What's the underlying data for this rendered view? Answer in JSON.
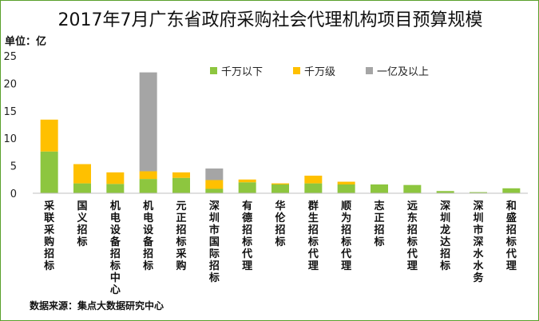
{
  "title": "2017年7月广东省政府采购社会代理机构项目预算规模",
  "unit_label": "单位：亿",
  "source_label": "数据来源：集点大数据研究中心",
  "colors": {
    "series_0": "#8dc63f",
    "series_1": "#ffc000",
    "series_2": "#a5a5a5",
    "axis": "#bfbfbf"
  },
  "chart_data": {
    "type": "bar",
    "stacked": true,
    "title": "2017年7月广东省政府采购社会代理机构项目预算规模",
    "ylabel": "单位：亿",
    "ylim": [
      0,
      25
    ],
    "yticks": [
      0,
      5,
      10,
      15,
      20,
      25
    ],
    "legend_position": "top",
    "categories": [
      "采联采购招标",
      "国义招标",
      "机电设备招标中心",
      "机电设备招标",
      "元正招标采购",
      "深圳市国际招标",
      "有德招标代理",
      "华伦招标",
      "群生招标代理",
      "顺为招标代理",
      "志正招标",
      "远东招标代理",
      "深圳龙达招标",
      "深圳市深水水务",
      "和盛招标代理"
    ],
    "series": [
      {
        "name": "千万以下",
        "values": [
          7.6,
          1.8,
          1.7,
          2.6,
          2.8,
          0.8,
          2.0,
          1.6,
          1.8,
          1.6,
          1.6,
          1.5,
          0.4,
          0.2,
          0.9
        ]
      },
      {
        "name": "千万级",
        "values": [
          5.8,
          3.5,
          2.1,
          1.4,
          1.0,
          1.6,
          0.5,
          0.2,
          1.4,
          0.5,
          0.0,
          0.0,
          0.0,
          0.0,
          0.0
        ]
      },
      {
        "name": "一亿及以上",
        "values": [
          0,
          0,
          0,
          18.0,
          0,
          2.1,
          0,
          0,
          0,
          0,
          0,
          0,
          0,
          0,
          0
        ]
      }
    ]
  }
}
